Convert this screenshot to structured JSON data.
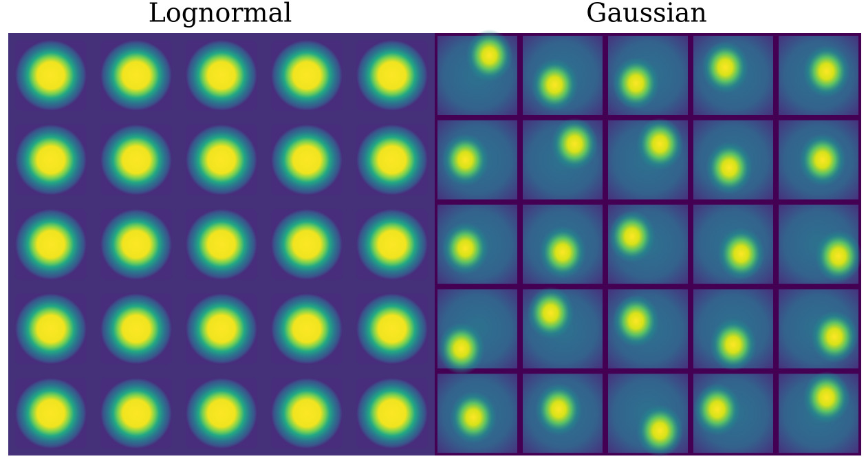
{
  "panels": [
    {
      "title": "Lognormal"
    },
    {
      "title": "Gaussian"
    }
  ]
}
